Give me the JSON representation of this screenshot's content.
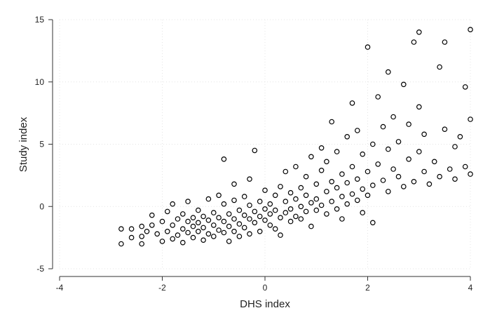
{
  "chart_data": {
    "type": "scatter",
    "title": "",
    "xlabel": "DHS index",
    "ylabel": "Study index",
    "xlim": [
      -4,
      4
    ],
    "ylim": [
      -5,
      15
    ],
    "xticks": [
      "-4",
      "-2",
      "0",
      "2",
      "4"
    ],
    "yticks": [
      "-5",
      "0",
      "5",
      "10",
      "15"
    ],
    "grid": true,
    "marker": "hollow-circle",
    "marker_color": "#000000",
    "series": [
      {
        "points": [
          [
            -2.8,
            -3.0
          ],
          [
            -2.8,
            -1.8
          ],
          [
            -2.6,
            -1.8
          ],
          [
            -2.6,
            -2.5
          ],
          [
            -2.4,
            -1.6
          ],
          [
            -2.4,
            -2.4
          ],
          [
            -2.4,
            -3.0
          ],
          [
            -2.3,
            -2.0
          ],
          [
            -2.2,
            -0.7
          ],
          [
            -2.2,
            -1.5
          ],
          [
            -2.1,
            -2.2
          ],
          [
            -2.0,
            -2.8
          ],
          [
            -2.0,
            -1.2
          ],
          [
            -1.9,
            -0.4
          ],
          [
            -1.9,
            -2.0
          ],
          [
            -1.8,
            -1.5
          ],
          [
            -1.8,
            -2.6
          ],
          [
            -1.8,
            0.2
          ],
          [
            -1.7,
            -1.0
          ],
          [
            -1.7,
            -2.3
          ],
          [
            -1.6,
            -0.6
          ],
          [
            -1.6,
            -1.8
          ],
          [
            -1.6,
            -2.9
          ],
          [
            -1.5,
            -1.2
          ],
          [
            -1.5,
            -2.1
          ],
          [
            -1.5,
            0.4
          ],
          [
            -1.4,
            -0.9
          ],
          [
            -1.4,
            -1.6
          ],
          [
            -1.4,
            -2.5
          ],
          [
            -1.3,
            -0.3
          ],
          [
            -1.3,
            -1.3
          ],
          [
            -1.3,
            -2.0
          ],
          [
            -1.2,
            -1.7
          ],
          [
            -1.2,
            -0.8
          ],
          [
            -1.2,
            -2.7
          ],
          [
            -1.1,
            0.6
          ],
          [
            -1.1,
            -1.1
          ],
          [
            -1.1,
            -2.2
          ],
          [
            -1.0,
            -0.5
          ],
          [
            -1.0,
            -1.5
          ],
          [
            -1.0,
            -2.4
          ],
          [
            -0.9,
            0.9
          ],
          [
            -0.9,
            -0.9
          ],
          [
            -0.9,
            -1.9
          ],
          [
            -0.8,
            0.2
          ],
          [
            -0.8,
            -1.2
          ],
          [
            -0.8,
            -2.1
          ],
          [
            -0.8,
            3.8
          ],
          [
            -0.7,
            -0.6
          ],
          [
            -0.7,
            -1.6
          ],
          [
            -0.7,
            -2.8
          ],
          [
            -0.6,
            0.5
          ],
          [
            -0.6,
            -1.0
          ],
          [
            -0.6,
            -2.0
          ],
          [
            -0.6,
            1.8
          ],
          [
            -0.5,
            -0.3
          ],
          [
            -0.5,
            -1.4
          ],
          [
            -0.5,
            -2.4
          ],
          [
            -0.4,
            0.8
          ],
          [
            -0.4,
            -0.7
          ],
          [
            -0.4,
            -1.7
          ],
          [
            -0.3,
            0.1
          ],
          [
            -0.3,
            -1.0
          ],
          [
            -0.3,
            -2.2
          ],
          [
            -0.3,
            2.2
          ],
          [
            -0.2,
            -0.4
          ],
          [
            -0.2,
            -1.3
          ],
          [
            -0.2,
            4.5
          ],
          [
            -0.1,
            0.4
          ],
          [
            -0.1,
            -0.8
          ],
          [
            -0.1,
            -2.0
          ],
          [
            0.0,
            -0.2
          ],
          [
            0.0,
            -1.1
          ],
          [
            0.0,
            1.3
          ],
          [
            0.1,
            0.2
          ],
          [
            0.1,
            -0.6
          ],
          [
            0.1,
            -1.5
          ],
          [
            0.2,
            0.9
          ],
          [
            0.2,
            -0.3
          ],
          [
            0.2,
            -1.8
          ],
          [
            0.3,
            1.6
          ],
          [
            0.3,
            -0.9
          ],
          [
            0.3,
            -2.3
          ],
          [
            0.4,
            0.4
          ],
          [
            0.4,
            -0.5
          ],
          [
            0.4,
            2.8
          ],
          [
            0.5,
            1.1
          ],
          [
            0.5,
            -0.2
          ],
          [
            0.5,
            -1.2
          ],
          [
            0.6,
            0.6
          ],
          [
            0.6,
            -0.8
          ],
          [
            0.6,
            3.2
          ],
          [
            0.7,
            1.5
          ],
          [
            0.7,
            0.0
          ],
          [
            0.7,
            -1.0
          ],
          [
            0.8,
            0.9
          ],
          [
            0.8,
            -0.4
          ],
          [
            0.8,
            2.4
          ],
          [
            0.9,
            4.0
          ],
          [
            0.9,
            0.3
          ],
          [
            0.9,
            -1.6
          ],
          [
            1.0,
            1.8
          ],
          [
            1.0,
            0.6
          ],
          [
            1.0,
            -0.3
          ],
          [
            1.1,
            2.9
          ],
          [
            1.1,
            0.1
          ],
          [
            1.1,
            4.7
          ],
          [
            1.2,
            1.2
          ],
          [
            1.2,
            -0.6
          ],
          [
            1.2,
            3.6
          ],
          [
            1.3,
            2.0
          ],
          [
            1.3,
            0.4
          ],
          [
            1.3,
            6.8
          ],
          [
            1.4,
            1.5
          ],
          [
            1.4,
            -0.2
          ],
          [
            1.4,
            4.4
          ],
          [
            1.5,
            2.6
          ],
          [
            1.5,
            0.8
          ],
          [
            1.5,
            -1.0
          ],
          [
            1.6,
            1.9
          ],
          [
            1.6,
            5.6
          ],
          [
            1.6,
            0.2
          ],
          [
            1.7,
            3.2
          ],
          [
            1.7,
            1.0
          ],
          [
            1.7,
            8.3
          ],
          [
            1.8,
            2.2
          ],
          [
            1.8,
            0.5
          ],
          [
            1.8,
            6.1
          ],
          [
            1.9,
            1.4
          ],
          [
            1.9,
            4.2
          ],
          [
            1.9,
            -0.5
          ],
          [
            2.0,
            2.8
          ],
          [
            2.0,
            0.9
          ],
          [
            2.0,
            12.8
          ],
          [
            2.1,
            1.7
          ],
          [
            2.1,
            5.0
          ],
          [
            2.1,
            -1.3
          ],
          [
            2.2,
            3.4
          ],
          [
            2.2,
            8.8
          ],
          [
            2.3,
            2.1
          ],
          [
            2.3,
            6.4
          ],
          [
            2.4,
            4.6
          ],
          [
            2.4,
            1.2
          ],
          [
            2.4,
            10.8
          ],
          [
            2.5,
            3.0
          ],
          [
            2.5,
            7.2
          ],
          [
            2.6,
            2.4
          ],
          [
            2.6,
            5.2
          ],
          [
            2.7,
            1.6
          ],
          [
            2.7,
            9.8
          ],
          [
            2.8,
            3.8
          ],
          [
            2.8,
            6.6
          ],
          [
            2.9,
            2.0
          ],
          [
            2.9,
            13.2
          ],
          [
            3.0,
            4.4
          ],
          [
            3.0,
            8.0
          ],
          [
            3.0,
            14.0
          ],
          [
            3.1,
            2.8
          ],
          [
            3.1,
            5.8
          ],
          [
            3.2,
            1.8
          ],
          [
            3.3,
            3.6
          ],
          [
            3.4,
            2.4
          ],
          [
            3.4,
            11.2
          ],
          [
            3.5,
            6.2
          ],
          [
            3.5,
            13.2
          ],
          [
            3.6,
            3.0
          ],
          [
            3.7,
            4.8
          ],
          [
            3.7,
            2.2
          ],
          [
            3.8,
            5.6
          ],
          [
            3.9,
            3.2
          ],
          [
            3.9,
            9.6
          ],
          [
            4.0,
            2.6
          ],
          [
            4.0,
            14.2
          ],
          [
            4.0,
            7.0
          ]
        ]
      }
    ]
  }
}
